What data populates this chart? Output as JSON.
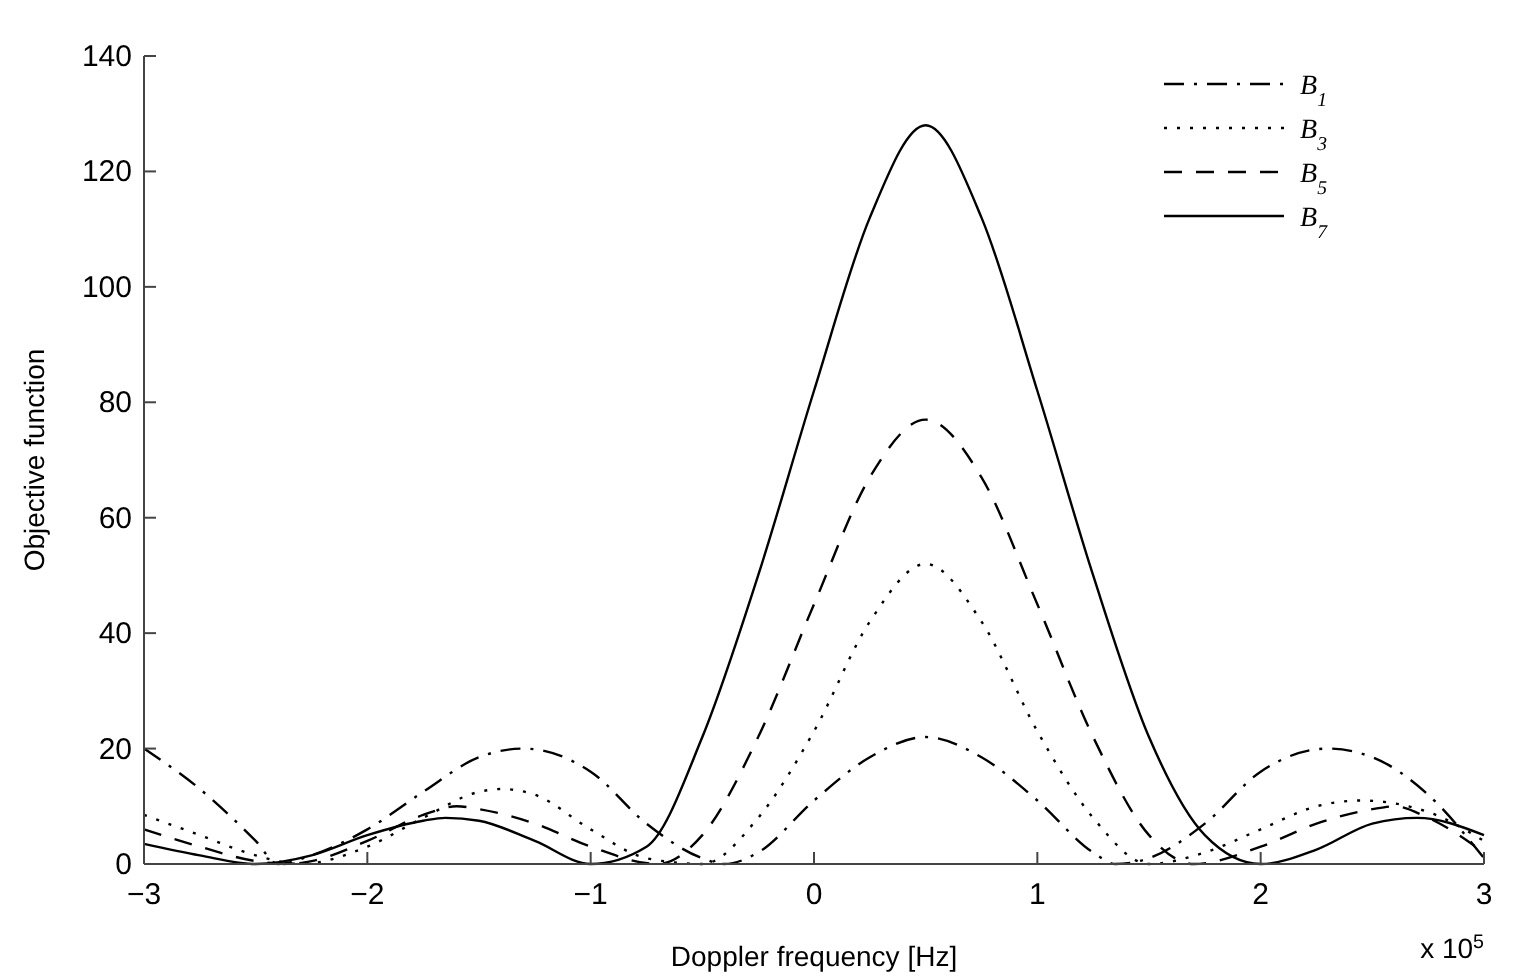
{
  "chart_data": {
    "type": "line",
    "xlabel": "Doppler frequency [Hz]",
    "ylabel": "Objective function",
    "annotations": [
      "x 10$^{5}$"
    ],
    "xlim": [
      -3,
      3
    ],
    "xticks": [
      {
        "value": -3,
        "label": "−3"
      },
      {
        "value": -2,
        "label": "−2"
      },
      {
        "value": -1,
        "label": "−1"
      },
      0,
      1,
      2,
      3
    ],
    "ylim": [
      0,
      140
    ],
    "yticks": [
      0,
      20,
      40,
      60,
      80,
      100,
      120,
      140
    ],
    "grid": false,
    "legend": "top right",
    "series": [
      {
        "name": "B$_{1}$",
        "color": "#000000",
        "line_style": "dashdot",
        "x": [
          -3,
          -2.75,
          -2.5,
          -2.4,
          -2.25,
          -2,
          -1.75,
          -1.5,
          -1.3,
          -1,
          -0.75,
          -0.5,
          -0.4,
          -0.25,
          0,
          0.25,
          0.5,
          0.75,
          1,
          1.25,
          1.35,
          1.5,
          1.75,
          2,
          2.3,
          2.5,
          2.75,
          3
        ],
        "values": [
          20,
          13,
          4,
          0,
          1.5,
          6,
          12.5,
          18.5,
          20,
          16,
          7,
          1,
          0,
          2,
          11,
          18.5,
          22,
          18.5,
          11,
          2,
          0,
          1,
          7,
          16,
          20,
          18.5,
          12,
          1
        ]
      },
      {
        "name": "B$_{3}$",
        "color": "#000000",
        "line_style": "dotted",
        "x": [
          -3,
          -2.75,
          -2.5,
          -2.3,
          -2,
          -1.75,
          -1.5,
          -1.4,
          -1.25,
          -1,
          -0.75,
          -0.5,
          -0.25,
          0,
          0.25,
          0.5,
          0.75,
          1,
          1.25,
          1.5,
          1.75,
          2,
          2.25,
          2.45,
          2.75,
          3
        ],
        "values": [
          8.5,
          5,
          1.5,
          0,
          3,
          8,
          12.5,
          13,
          12,
          6,
          1,
          0,
          8,
          23,
          42,
          52,
          42,
          23,
          8,
          0,
          2,
          6,
          10,
          11,
          9,
          4
        ]
      },
      {
        "name": "B$_{5}$",
        "color": "#000000",
        "line_style": "dashed",
        "x": [
          -3,
          -2.75,
          -2.5,
          -2.35,
          -2.25,
          -2,
          -1.75,
          -1.6,
          -1.5,
          -1.25,
          -1,
          -0.7,
          -0.5,
          -0.25,
          0,
          0.25,
          0.5,
          0.75,
          1,
          1.25,
          1.5,
          1.7,
          2,
          2.25,
          2.5,
          2.6,
          2.75,
          3
        ],
        "values": [
          6,
          3,
          0.5,
          0,
          0.5,
          4,
          8.5,
          10,
          9.5,
          7,
          3,
          0,
          5,
          22,
          45,
          67,
          77,
          67,
          45,
          22,
          5,
          0,
          3,
          7,
          9.5,
          10,
          8,
          2
        ]
      },
      {
        "name": "B$_{7}$",
        "color": "#000000",
        "line_style": "solid",
        "x": [
          -3,
          -2.75,
          -2.5,
          -2.25,
          -2,
          -1.75,
          -1.65,
          -1.5,
          -1.25,
          -1,
          -0.75,
          -0.5,
          -0.25,
          0,
          0.25,
          0.5,
          0.75,
          1,
          1.25,
          1.5,
          1.75,
          2,
          2.25,
          2.5,
          2.7,
          3
        ],
        "values": [
          3.5,
          1.5,
          0,
          1.5,
          5,
          7.5,
          8,
          7.5,
          4,
          0,
          3,
          22,
          50,
          82,
          112,
          128,
          112,
          82,
          50,
          22,
          5,
          0,
          2.5,
          7,
          8,
          5
        ]
      }
    ]
  }
}
